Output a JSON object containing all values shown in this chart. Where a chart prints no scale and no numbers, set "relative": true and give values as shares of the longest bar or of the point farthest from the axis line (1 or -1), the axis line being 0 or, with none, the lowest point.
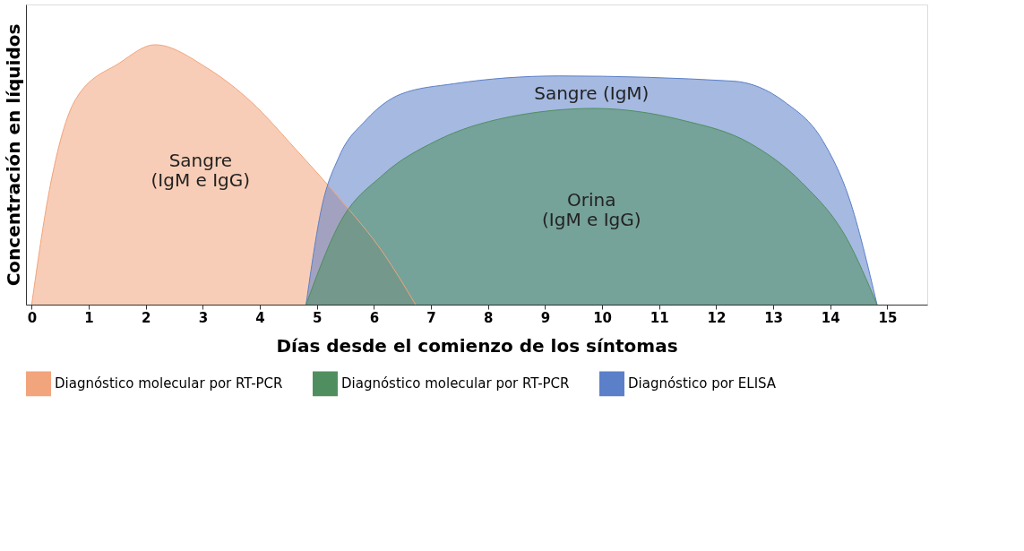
{
  "chart_data": {
    "type": "area",
    "relative": true,
    "xlabel": "Días desde el comienzo de los síntomas",
    "ylabel": "Concentración en líquidos",
    "xlim": [
      -0.1,
      15.7
    ],
    "xticks": [
      0,
      1,
      2,
      3,
      4,
      5,
      6,
      7,
      8,
      9,
      10,
      11,
      12,
      13,
      14,
      15
    ],
    "grid": false,
    "legend": "bottom",
    "series": [
      {
        "name": "Diagnóstico molecular por RT-PCR",
        "color": "#f2a47c",
        "x": [
          0,
          0.31,
          0.77,
          1.54,
          2.16,
          3.08,
          3.85,
          4.62,
          5.39,
          6.16,
          6.73
        ],
        "values": [
          0,
          0.44,
          0.79,
          0.93,
          1,
          0.91,
          0.78,
          0.6,
          0.41,
          0.2,
          0
        ]
      },
      {
        "name": "Diagnóstico molecular por RT-PCR",
        "color": "#4f8f5f",
        "x": [
          4.81,
          5.39,
          6.16,
          7.09,
          8.32,
          9.86,
          11.4,
          12.6,
          13.5,
          14.3,
          14.82
        ],
        "values": [
          0,
          0.31,
          0.5,
          0.63,
          0.72,
          0.755,
          0.71,
          0.62,
          0.47,
          0.25,
          0
        ]
      },
      {
        "name": "Diagnóstico por ELISA",
        "color": "#5b7fc8",
        "x": [
          4.81,
          5.08,
          5.39,
          5.86,
          6.47,
          7.4,
          9.24,
          12.3,
          13.2,
          13.87,
          14.33,
          14.82
        ],
        "values": [
          0,
          0.37,
          0.57,
          0.71,
          0.81,
          0.85,
          0.88,
          0.86,
          0.78,
          0.63,
          0.41,
          0
        ]
      }
    ],
    "annotations": [
      "Sangre\n(IgM e IgG)",
      "Sangre (IgM)",
      "Orina\n(IgM e IgG)"
    ]
  }
}
